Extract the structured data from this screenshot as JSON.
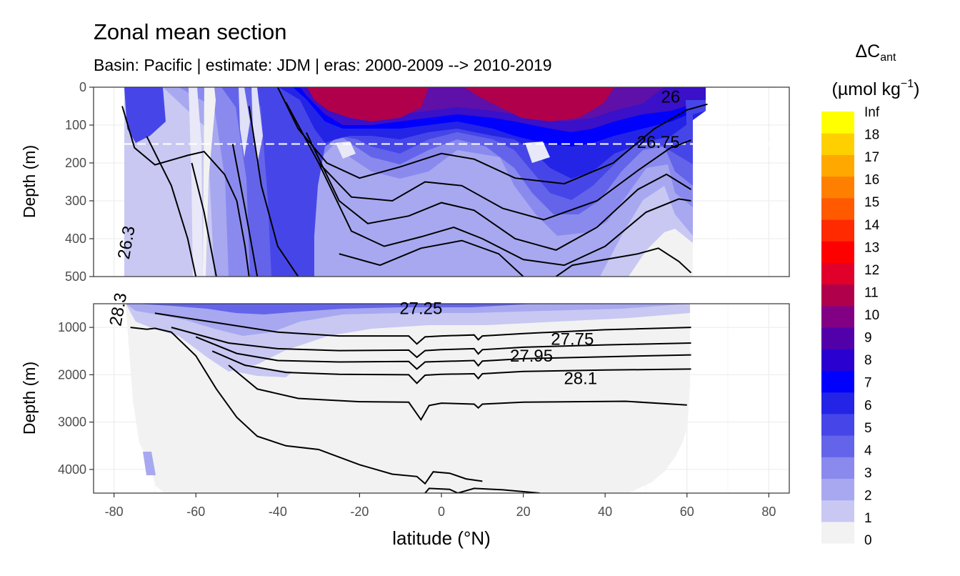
{
  "chart_data": {
    "type": "heatmap",
    "title": "Zonal mean section",
    "subtitle": "Basin: Pacific | estimate: JDM  | eras: 2000-2009 --> 2010-2019",
    "xlabel": "latitude (°N)",
    "ylabel": "Depth (m)",
    "xlim": [
      -85,
      85
    ],
    "x_ticks": [
      "-80",
      "-60",
      "-40",
      "-20",
      "0",
      "20",
      "40",
      "60",
      "80"
    ],
    "panels": [
      {
        "name": "upper",
        "ylim": [
          0,
          500
        ],
        "y_ticks": [
          "0",
          "100",
          "200",
          "300",
          "400",
          "500"
        ],
        "dashed_line_depth": 150
      },
      {
        "name": "lower",
        "ylim": [
          500,
          4500
        ],
        "y_ticks": [
          "1000",
          "2000",
          "3000",
          "4000"
        ]
      }
    ],
    "legend": {
      "title": "ΔC",
      "title_sub": "ant",
      "unit_open": "(µmol kg",
      "unit_sup": "−1",
      "unit_close": ")",
      "placement": "right",
      "labels": [
        "Inf",
        "18",
        "17",
        "16",
        "15",
        "14",
        "13",
        "12",
        "11",
        "10",
        "9",
        "8",
        "7",
        "6",
        "5",
        "4",
        "3",
        "2",
        "1",
        "0"
      ],
      "colors": [
        "#f2f2f2",
        "#c8c8f2",
        "#a8a8f0",
        "#8a8aee",
        "#6464ea",
        "#4646e8",
        "#2424e6",
        "#0000ff",
        "#2a00d0",
        "#5200aa",
        "#820084",
        "#b0004c",
        "#e0002a",
        "#ff0000",
        "#ff2a00",
        "#ff5a00",
        "#ff8000",
        "#ffa800",
        "#ffd000",
        "#ffff00"
      ]
    },
    "contour_labels": [
      {
        "text": "26",
        "x": 56,
        "depth": 25
      },
      {
        "text": "26.75",
        "x": 53,
        "depth": 145
      },
      {
        "text": "26.3",
        "x": -77,
        "depth": 410
      },
      {
        "text": "27.25",
        "x": -5,
        "depth": 600
      },
      {
        "text": "27.75",
        "x": 32,
        "depth": 1250
      },
      {
        "text": "27.95",
        "x": 22,
        "depth": 1600
      },
      {
        "text": "28.1",
        "x": 34,
        "depth": 2080
      },
      {
        "text": "28.3",
        "x": -79,
        "depth": 620
      }
    ],
    "isopycnals_upper": [
      [
        [
          -78,
          50
        ],
        [
          -75,
          160
        ],
        [
          -70,
          205
        ],
        [
          -62,
          180
        ],
        [
          -58,
          170
        ],
        [
          -53,
          230
        ],
        [
          -50,
          300
        ],
        [
          -48,
          420
        ],
        [
          -47,
          500
        ]
      ],
      [
        [
          -72,
          130
        ],
        [
          -66,
          260
        ],
        [
          -62,
          400
        ],
        [
          -60,
          500
        ]
      ],
      [
        [
          -61,
          200
        ],
        [
          -58,
          330
        ],
        [
          -55,
          500
        ]
      ],
      [
        [
          -51,
          150
        ],
        [
          -48,
          320
        ],
        [
          -45,
          500
        ]
      ],
      [
        [
          -47,
          50
        ],
        [
          -44,
          260
        ],
        [
          -40,
          420
        ],
        [
          -35,
          500
        ]
      ],
      [
        [
          -40,
          0
        ],
        [
          -35,
          110
        ],
        [
          -28,
          200
        ],
        [
          -20,
          240
        ],
        [
          -10,
          210
        ],
        [
          0,
          175
        ],
        [
          8,
          190
        ],
        [
          18,
          240
        ],
        [
          30,
          255
        ],
        [
          42,
          200
        ],
        [
          52,
          110
        ],
        [
          60,
          60
        ],
        [
          65,
          45
        ]
      ],
      [
        [
          -38,
          40
        ],
        [
          -30,
          200
        ],
        [
          -22,
          290
        ],
        [
          -12,
          300
        ],
        [
          -4,
          250
        ],
        [
          5,
          260
        ],
        [
          15,
          320
        ],
        [
          25,
          350
        ],
        [
          38,
          300
        ],
        [
          48,
          220
        ],
        [
          56,
          160
        ],
        [
          61,
          140
        ]
      ],
      [
        [
          -33,
          120
        ],
        [
          -25,
          300
        ],
        [
          -18,
          360
        ],
        [
          -8,
          340
        ],
        [
          0,
          305
        ],
        [
          8,
          325
        ],
        [
          18,
          400
        ],
        [
          28,
          430
        ],
        [
          38,
          370
        ],
        [
          48,
          270
        ],
        [
          55,
          230
        ],
        [
          61,
          270
        ]
      ],
      [
        [
          -30,
          200
        ],
        [
          -22,
          380
        ],
        [
          -14,
          420
        ],
        [
          -5,
          395
        ],
        [
          3,
          370
        ],
        [
          10,
          400
        ],
        [
          20,
          455
        ],
        [
          30,
          470
        ],
        [
          40,
          420
        ],
        [
          50,
          330
        ],
        [
          58,
          295
        ],
        [
          61,
          300
        ]
      ],
      [
        [
          -25,
          440
        ],
        [
          -15,
          470
        ],
        [
          -5,
          425
        ],
        [
          5,
          405
        ],
        [
          14,
          440
        ],
        [
          20,
          500
        ]
      ],
      [
        [
          28,
          500
        ],
        [
          32,
          470
        ],
        [
          40,
          455
        ],
        [
          48,
          440
        ],
        [
          53,
          425
        ],
        [
          58,
          460
        ],
        [
          61,
          490
        ]
      ]
    ],
    "isopycnals_lower": [
      [
        [
          -70,
          700
        ],
        [
          -55,
          900
        ],
        [
          -40,
          1100
        ],
        [
          -25,
          1180
        ],
        [
          -8,
          1180
        ],
        [
          -6,
          1350
        ],
        [
          -4,
          1200
        ],
        [
          0,
          1180
        ],
        [
          8,
          1160
        ],
        [
          9,
          1260
        ],
        [
          10,
          1180
        ],
        [
          20,
          1130
        ],
        [
          40,
          1050
        ],
        [
          61,
          1000
        ]
      ],
      [
        [
          -66,
          1000
        ],
        [
          -52,
          1330
        ],
        [
          -40,
          1450
        ],
        [
          -25,
          1490
        ],
        [
          -8,
          1480
        ],
        [
          -6,
          1630
        ],
        [
          -4,
          1490
        ],
        [
          0,
          1470
        ],
        [
          8,
          1450
        ],
        [
          9,
          1560
        ],
        [
          10,
          1470
        ],
        [
          20,
          1420
        ],
        [
          40,
          1370
        ],
        [
          61,
          1330
        ]
      ],
      [
        [
          -60,
          1200
        ],
        [
          -50,
          1550
        ],
        [
          -40,
          1700
        ],
        [
          -25,
          1730
        ],
        [
          -8,
          1720
        ],
        [
          -6,
          1880
        ],
        [
          -4,
          1730
        ],
        [
          0,
          1720
        ],
        [
          8,
          1700
        ],
        [
          9,
          1810
        ],
        [
          10,
          1710
        ],
        [
          20,
          1660
        ],
        [
          40,
          1620
        ],
        [
          61,
          1580
        ]
      ],
      [
        [
          -56,
          1500
        ],
        [
          -48,
          1800
        ],
        [
          -38,
          1950
        ],
        [
          -25,
          1990
        ],
        [
          -8,
          2000
        ],
        [
          -6,
          2180
        ],
        [
          -4,
          2010
        ],
        [
          0,
          1990
        ],
        [
          8,
          1980
        ],
        [
          9,
          2080
        ],
        [
          10,
          1980
        ],
        [
          20,
          1930
        ],
        [
          40,
          1900
        ],
        [
          61,
          1880
        ]
      ],
      [
        [
          -52,
          1800
        ],
        [
          -45,
          2300
        ],
        [
          -35,
          2500
        ],
        [
          -20,
          2570
        ],
        [
          -8,
          2580
        ],
        [
          -5,
          2950
        ],
        [
          -3,
          2650
        ],
        [
          0,
          2600
        ],
        [
          8,
          2620
        ],
        [
          9,
          2700
        ],
        [
          10,
          2620
        ],
        [
          20,
          2580
        ],
        [
          45,
          2560
        ],
        [
          60,
          2640
        ]
      ],
      [
        [
          -76,
          1000
        ],
        [
          -72,
          1040
        ],
        [
          -70,
          1020
        ],
        [
          -66,
          1100
        ],
        [
          -60,
          1600
        ],
        [
          -55,
          2300
        ],
        [
          -50,
          2900
        ],
        [
          -45,
          3300
        ],
        [
          -38,
          3500
        ],
        [
          -30,
          3580
        ],
        [
          -20,
          3900
        ],
        [
          -12,
          4100
        ],
        [
          -6,
          4150
        ],
        [
          -4,
          4300
        ],
        [
          -2,
          4050
        ],
        [
          2,
          4080
        ],
        [
          6,
          4200
        ],
        [
          10,
          4250
        ]
      ],
      [
        [
          -4,
          4500
        ],
        [
          -3,
          4400
        ],
        [
          2,
          4420
        ],
        [
          4,
          4500
        ],
        [
          8,
          4400
        ],
        [
          15,
          4430
        ],
        [
          24,
          4500
        ]
      ]
    ]
  }
}
